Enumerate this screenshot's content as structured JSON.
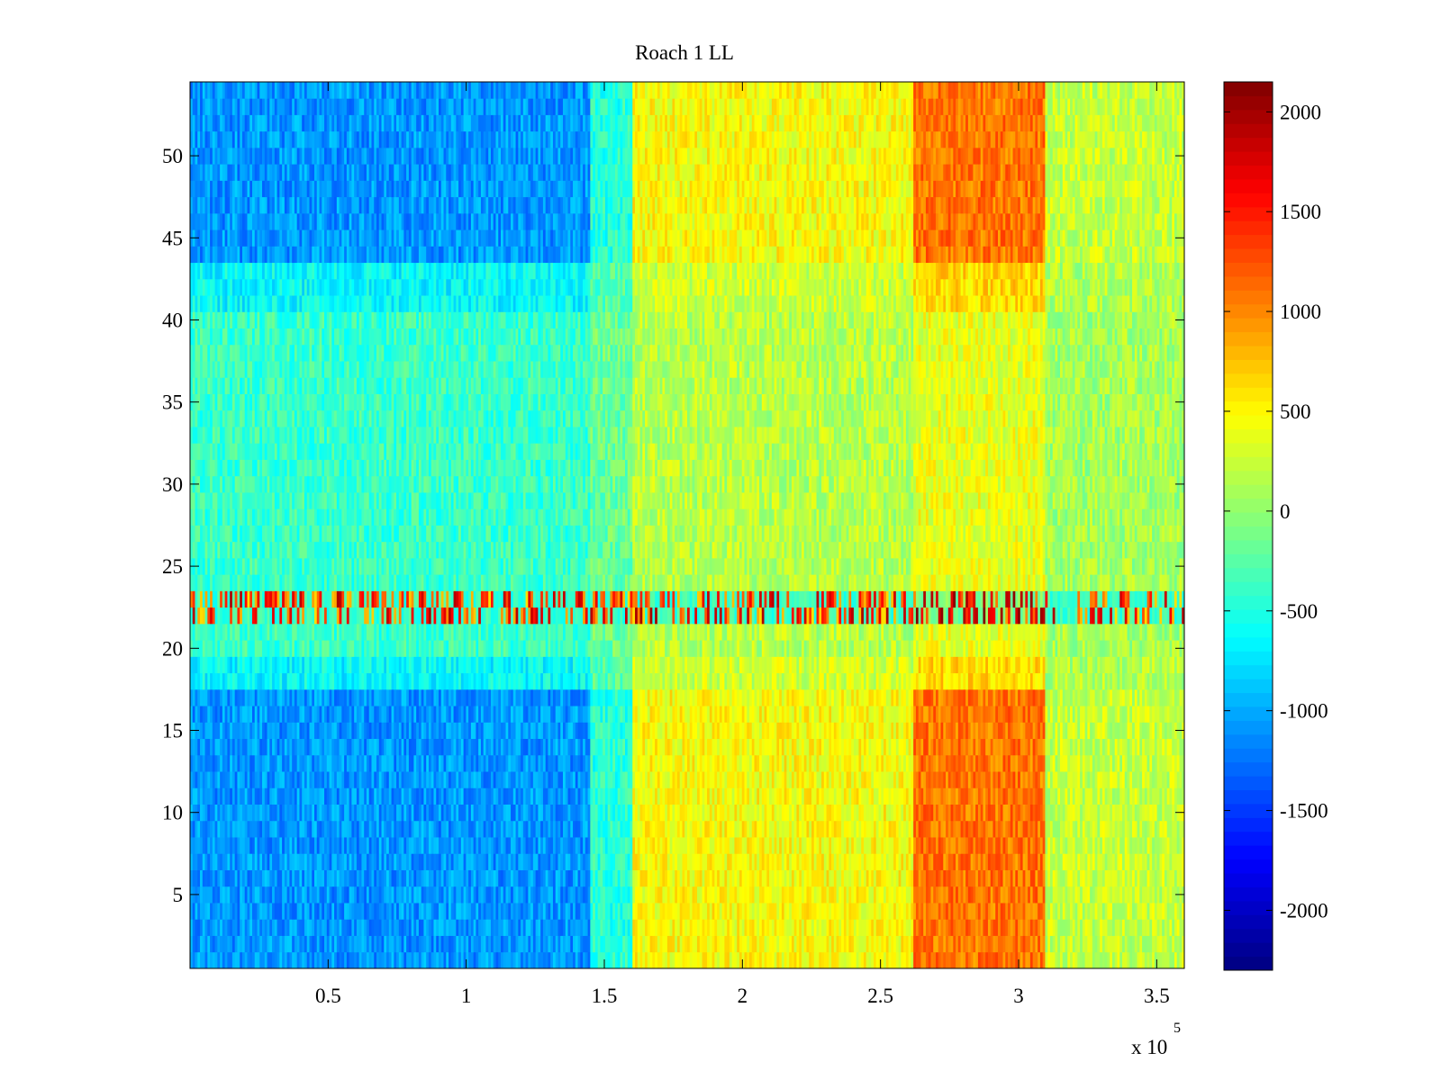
{
  "chart_data": {
    "type": "heatmap",
    "title": "Roach 1 LL",
    "xlabel": "",
    "ylabel": "",
    "x_exponent_label": "x 10",
    "x_exponent": "5",
    "xlim": [
      0,
      360000
    ],
    "ylim": [
      0.5,
      54.5
    ],
    "x_ticks": [
      50000,
      100000,
      150000,
      200000,
      250000,
      300000,
      350000
    ],
    "x_tick_labels": [
      "0.5",
      "1",
      "1.5",
      "2",
      "2.5",
      "3",
      "3.5"
    ],
    "y_ticks": [
      5,
      10,
      15,
      20,
      25,
      30,
      35,
      40,
      45,
      50
    ],
    "y_tick_labels": [
      "5",
      "10",
      "15",
      "20",
      "25",
      "30",
      "35",
      "40",
      "45",
      "50"
    ],
    "colorbar": {
      "colormap": "jet",
      "clim": [
        -2300,
        2150
      ],
      "ticks": [
        2000,
        1500,
        1000,
        500,
        0,
        -500,
        -1000,
        -1500,
        -2000
      ],
      "tick_labels": [
        "2000",
        "1500",
        "1000",
        "500",
        "0",
        "-500",
        "-1000",
        "-1500",
        "-2000"
      ]
    },
    "rows": 54,
    "x_segments": [
      {
        "x_range": [
          0,
          145000
        ],
        "approx_value": -700,
        "note": "strongest negative in rows 1-17 and 44-54, near -1000 to -1500"
      },
      {
        "x_range": [
          145000,
          160000
        ],
        "approx_value": -300
      },
      {
        "x_range": [
          160000,
          262000
        ],
        "approx_value": 300
      },
      {
        "x_range": [
          262000,
          310000
        ],
        "approx_value": 700,
        "note": "peaks near 900 in rows 1-17 and 44-54"
      },
      {
        "x_range": [
          310000,
          360000
        ],
        "approx_value": 150
      }
    ],
    "highlight_rows": {
      "rows": [
        22,
        23
      ],
      "note": "high-variance band alternating between about -600 and 2000"
    },
    "grid": false
  },
  "colors": {
    "axes": "#000000",
    "background": "#ffffff"
  }
}
